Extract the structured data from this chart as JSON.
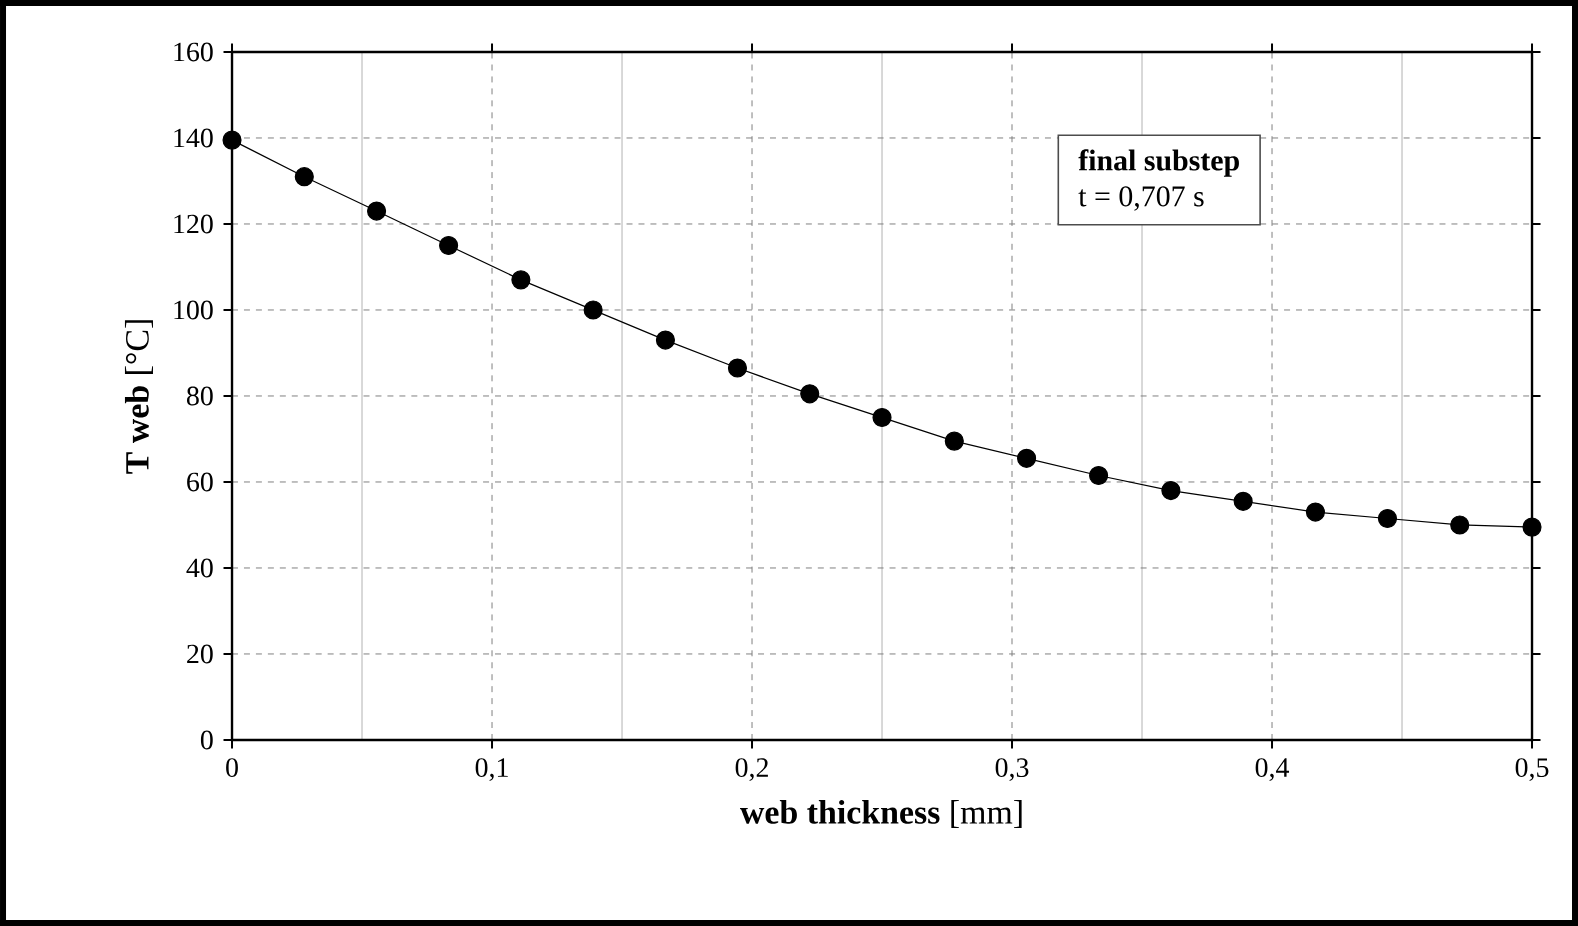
{
  "chart_data": {
    "type": "line",
    "xlabel": "**web thickness** [mm]",
    "ylabel": "**T web** [°C]",
    "annotations": [
      "final substep",
      "t = 0,707 s"
    ],
    "x": [
      0,
      0.0278,
      0.0556,
      0.0833,
      0.1111,
      0.1389,
      0.1667,
      0.1944,
      0.2222,
      0.25,
      0.2778,
      0.3056,
      0.3333,
      0.3611,
      0.3889,
      0.4167,
      0.4444,
      0.4722,
      0.5
    ],
    "series": [
      {
        "color": "#000000",
        "values": [
          139.5,
          131,
          123,
          115,
          107,
          100,
          93,
          86.5,
          80.5,
          75,
          69.5,
          65.5,
          61.5,
          58,
          55.5,
          53,
          51.5,
          50,
          49.5
        ]
      }
    ],
    "xlim": [
      0,
      0.5
    ],
    "xticks": [
      0,
      {
        "value": 0.1,
        "label": "0,1"
      },
      {
        "value": 0.2,
        "label": "0,2"
      },
      {
        "value": 0.3,
        "label": "0,3"
      },
      {
        "value": 0.4,
        "label": "0,4"
      },
      {
        "value": 0.5,
        "label": "0,5"
      }
    ],
    "ylim": [
      0,
      160
    ],
    "yticks": [
      0,
      20,
      40,
      60,
      80,
      100,
      120,
      140,
      160
    ],
    "grid": true,
    "marker": "circle",
    "line_style": "solid"
  }
}
